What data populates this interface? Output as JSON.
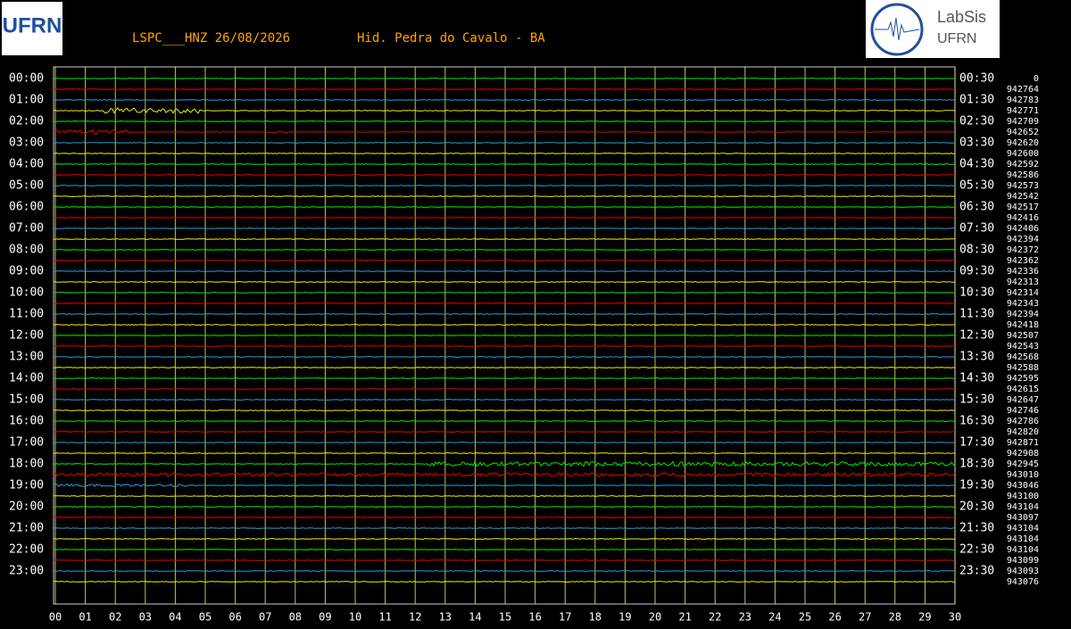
{
  "chart_data": {
    "type": "helicorder",
    "title": "LSPC___HNZ 26/08/2026",
    "subtitle": "Hid. Pedra do Cavalo - BA",
    "logo_left": "UFRN",
    "logo_right": [
      "LabSis",
      "UFRN"
    ],
    "trace_colors": [
      "#00ee00",
      "#ee0000",
      "#1ea0e0",
      "#eeee00"
    ],
    "grid_color": "#eeee88",
    "left_labels": [
      "00:00",
      "01:00",
      "02:00",
      "03:00",
      "04:00",
      "05:00",
      "06:00",
      "07:00",
      "08:00",
      "09:00",
      "10:00",
      "11:00",
      "12:00",
      "13:00",
      "14:00",
      "15:00",
      "16:00",
      "17:00",
      "18:00",
      "19:00",
      "20:00",
      "21:00",
      "22:00",
      "23:00"
    ],
    "right_labels": [
      "00:30",
      "01:30",
      "02:30",
      "03:30",
      "04:30",
      "05:30",
      "06:30",
      "07:30",
      "08:30",
      "09:30",
      "10:30",
      "11:30",
      "12:30",
      "13:30",
      "14:30",
      "15:30",
      "16:30",
      "17:30",
      "18:30",
      "19:30",
      "20:30",
      "21:30",
      "22:30",
      "23:30"
    ],
    "counts": [
      0,
      942764,
      942783,
      942771,
      942709,
      942652,
      942620,
      942600,
      942592,
      942586,
      942573,
      942542,
      942517,
      942416,
      942406,
      942394,
      942372,
      942362,
      942336,
      942313,
      942314,
      942343,
      942394,
      942418,
      942507,
      942543,
      942568,
      942588,
      942595,
      942615,
      942647,
      942746,
      942786,
      942820,
      942871,
      942908,
      942945,
      943010,
      943046,
      943100,
      943104,
      943097,
      943104,
      943104,
      943104,
      943099,
      943093,
      943076
    ],
    "xlim": [
      0,
      30
    ],
    "xticks": [
      {
        "value": 0,
        "label": "00"
      },
      {
        "value": 1,
        "label": "01"
      },
      {
        "value": 2,
        "label": "02"
      },
      {
        "value": 3,
        "label": "03"
      },
      {
        "value": 4,
        "label": "04"
      },
      {
        "value": 5,
        "label": "05"
      },
      {
        "value": 6,
        "label": "06"
      },
      {
        "value": 7,
        "label": "07"
      },
      {
        "value": 8,
        "label": "08"
      },
      {
        "value": 9,
        "label": "09"
      },
      10,
      11,
      12,
      13,
      14,
      15,
      16,
      17,
      18,
      19,
      20,
      21,
      22,
      23,
      24,
      25,
      26,
      27,
      28,
      29,
      30
    ]
  }
}
